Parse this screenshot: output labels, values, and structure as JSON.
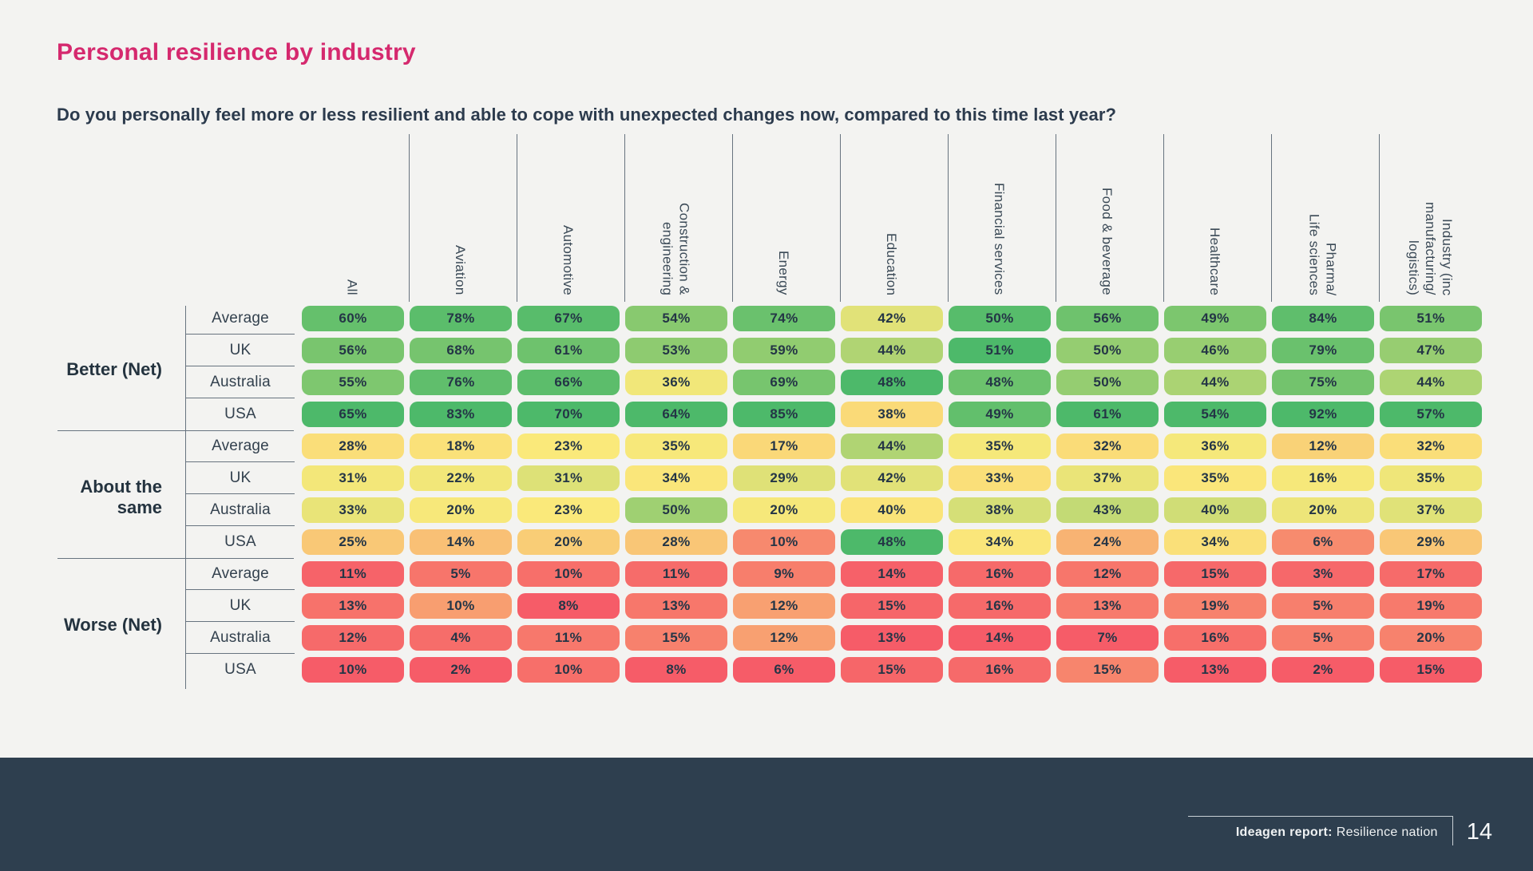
{
  "title": "Personal resilience by industry",
  "question": "Do you personally feel more or less resilient and able to cope with unexpected changes now, compared to this time last year?",
  "footer": {
    "report_label": "Ideagen report:",
    "report_name": "Resilience nation",
    "page_number": "14"
  },
  "colors": {
    "title_pink": "#D5296E",
    "footer_navy": "#2E3F4F",
    "background": "#F3F3F1",
    "line_slate": "#67737F",
    "cell_text_navy": "#243546"
  },
  "chart_data": {
    "type": "heatmap",
    "unit": "%",
    "value_suffix": "%",
    "columns": [
      "All",
      "Aviation",
      "Automotive",
      "Construction &\nengineering",
      "Energy",
      "Education",
      "Financial services",
      "Food & beverage",
      "Healthcare",
      "Pharma/\nLife sciences",
      "Industry (inc\nmanufacturing/\nlogistics)"
    ],
    "row_groups": [
      {
        "label": "Better (Net)",
        "rows": [
          {
            "label": "Average",
            "values": [
              60,
              78,
              67,
              54,
              74,
              42,
              50,
              56,
              49,
              84,
              51
            ]
          },
          {
            "label": "UK",
            "values": [
              56,
              68,
              61,
              53,
              59,
              44,
              51,
              50,
              46,
              79,
              47
            ]
          },
          {
            "label": "Australia",
            "values": [
              55,
              76,
              66,
              36,
              69,
              48,
              48,
              50,
              44,
              75,
              44
            ]
          },
          {
            "label": "USA",
            "values": [
              65,
              83,
              70,
              64,
              85,
              38,
              49,
              61,
              54,
              92,
              57
            ]
          }
        ]
      },
      {
        "label": "About the\nsame",
        "rows": [
          {
            "label": "Average",
            "values": [
              28,
              18,
              23,
              35,
              17,
              44,
              35,
              32,
              36,
              12,
              32
            ]
          },
          {
            "label": "UK",
            "values": [
              31,
              22,
              31,
              34,
              29,
              42,
              33,
              37,
              35,
              16,
              35
            ]
          },
          {
            "label": "Australia",
            "values": [
              33,
              20,
              23,
              50,
              20,
              40,
              38,
              43,
              40,
              20,
              37
            ]
          },
          {
            "label": "USA",
            "values": [
              25,
              14,
              20,
              28,
              10,
              48,
              34,
              24,
              34,
              6,
              29
            ]
          }
        ]
      },
      {
        "label": "Worse (Net)",
        "rows": [
          {
            "label": "Average",
            "values": [
              11,
              5,
              10,
              11,
              9,
              14,
              16,
              12,
              15,
              3,
              17
            ]
          },
          {
            "label": "UK",
            "values": [
              13,
              10,
              8,
              13,
              12,
              15,
              16,
              13,
              19,
              5,
              19
            ]
          },
          {
            "label": "Australia",
            "values": [
              12,
              4,
              11,
              15,
              12,
              13,
              14,
              7,
              16,
              5,
              20
            ]
          },
          {
            "label": "USA",
            "values": [
              10,
              2,
              10,
              8,
              6,
              15,
              16,
              15,
              13,
              2,
              15
            ]
          }
        ]
      }
    ],
    "color_scale": {
      "description": "per-column 3-color scale: column min -> red, column median -> yellow, column max -> green",
      "min_color": "#F65C68",
      "mid_color": "#FAE97A",
      "max_color": "#4DB96A"
    },
    "legend_position": "none",
    "grid": "separator lines between header columns and between row groups"
  }
}
